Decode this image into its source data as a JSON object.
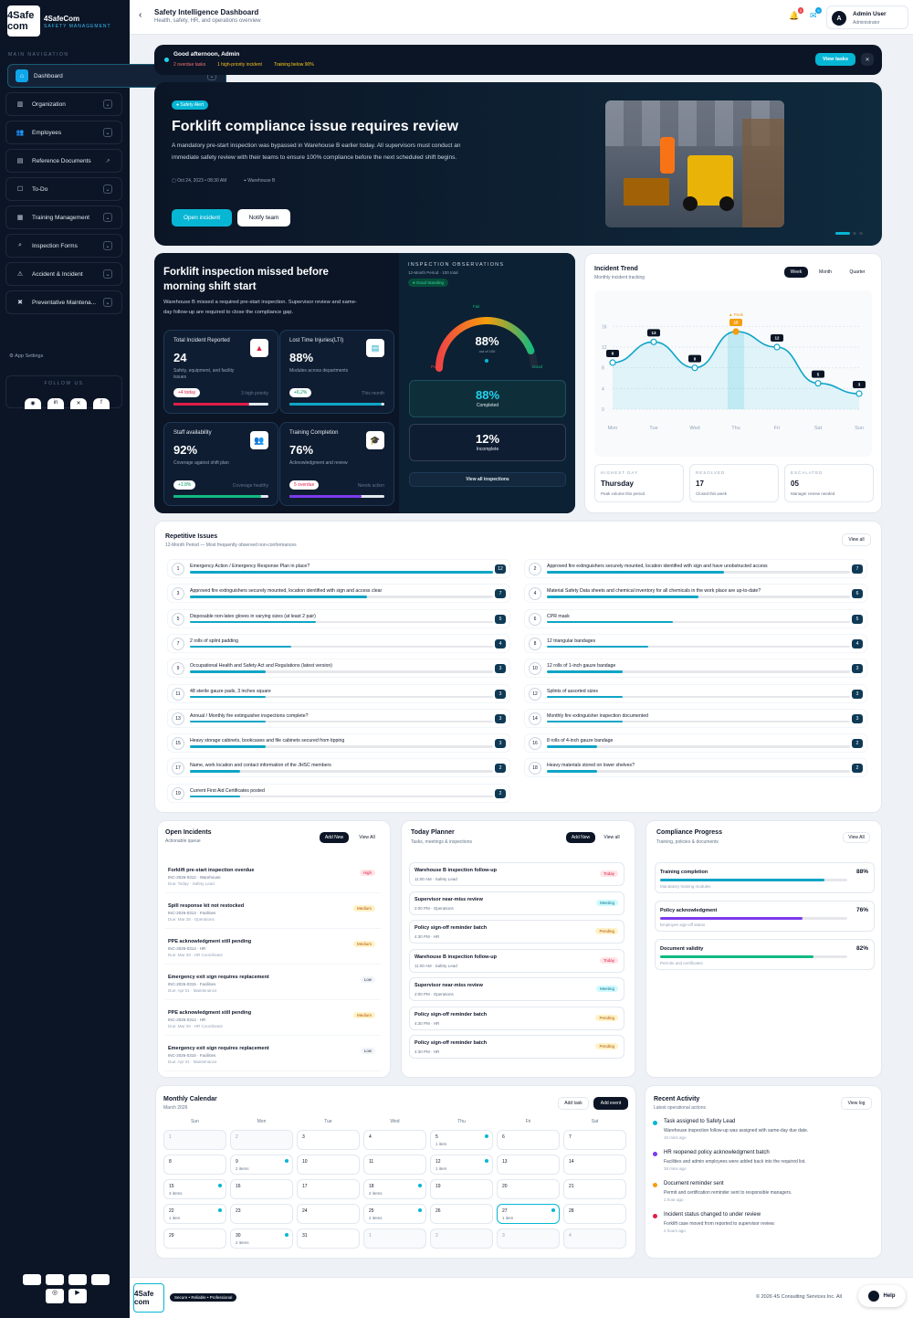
{
  "brand": {
    "logo": "4Safe com",
    "name": "4SafeCom",
    "tag": "SAFETY MANAGEMENT"
  },
  "sidebar": {
    "heading": "MAIN NAVIGATION",
    "items": [
      {
        "label": "Dashboard",
        "icon": "home-icon"
      },
      {
        "label": "Organization",
        "icon": "org-chart-icon"
      },
      {
        "label": "Employees",
        "icon": "people-icon"
      },
      {
        "label": "Reference Documents",
        "icon": "document-icon"
      },
      {
        "label": "To-Do",
        "icon": "todo-icon"
      },
      {
        "label": "Training Management",
        "icon": "training-icon"
      },
      {
        "label": "Inspection Forms",
        "icon": "search-icon"
      },
      {
        "label": "Accident & Incident",
        "icon": "incident-icon"
      },
      {
        "label": "Preventative Maintena...",
        "icon": "tools-icon"
      }
    ],
    "app_settings": "App Settings",
    "follow_us": "FOLLOW US"
  },
  "header": {
    "title": "Safety Intelligence Dashboard",
    "subtitle": "Health, safety, HR, and operations overview",
    "user_name": "Admin User",
    "user_role": "Administrator",
    "avatar": "A"
  },
  "greeting": {
    "title": "Good afternoon, Admin",
    "tag1": "2 overdue tasks",
    "tag2": "1 high-priority incident",
    "tag3": "Training below 90%",
    "button": "View tasks"
  },
  "hero": {
    "pill": "Safety Alert",
    "title": "Forklift compliance issue requires review",
    "body1": "A mandatory pre-start inspection was bypassed in Warehouse B earlier today. All supervisors must conduct an",
    "body2": "immediate safety review with their teams to ensure 100% compliance before the next scheduled shift begins.",
    "date": "Oct 24, 2023 • 08:30 AM",
    "location": "Warehouse B",
    "btn1": "Open incident",
    "btn2": "Notify team"
  },
  "summary": {
    "title1": "Forklift inspection missed before",
    "title2": "morning shift start",
    "body1": "Warehouse B missed a required pre-start inspection. Supervisor review and same-",
    "body2": "day follow-up are required to close the compliance gap."
  },
  "kpis": [
    {
      "label": "Total Incident Reported",
      "value": "24",
      "desc": "Safety, equipment, and facility issues",
      "change": "+4 today",
      "right": "3 high priority",
      "fill": 0.8,
      "color": "#e11d48",
      "icon": "warning-icon"
    },
    {
      "label": "Lost Time Injuries(LTI)",
      "value": "88%",
      "desc": "Modules across departments",
      "change": "+6.2%",
      "right": "This month",
      "fill": 0.97,
      "color": "#0ea5c6",
      "icon": "document-icon"
    },
    {
      "label": "Staff availability",
      "value": "92%",
      "desc": "Coverage against shift plan",
      "change": "+1.8%",
      "right": "Coverage healthy",
      "fill": 0.92,
      "color": "#10b981",
      "icon": "people-icon"
    },
    {
      "label": "Training Completion",
      "value": "76%",
      "desc": "Acknowledgment and review",
      "change": "5 overdue",
      "right": "Needs action",
      "fill": 0.76,
      "color": "#7c3aed",
      "icon": "graduation-icon"
    }
  ],
  "inspection": {
    "heading": "INSPECTION OBSERVATIONS",
    "period": "12-Month Period · 100 total",
    "status": "Good Standing",
    "gauge_value": "88%",
    "gauge_sub": "out of 100",
    "fair": "Fair",
    "poor": "Poor",
    "good": "Good",
    "completed_value": "88%",
    "completed_label": "Completed",
    "incomplete_value": "12%",
    "incomplete_label": "Incomplete",
    "button": "View all inspections",
    "gauge_fill": 0.88
  },
  "trend": {
    "title": "Incident Trend",
    "sub": "Monthly incident tracking",
    "tabs": [
      "Week",
      "Month",
      "Quarter"
    ],
    "peak": "Peak",
    "stats": [
      {
        "label": "HIGHEST DAY",
        "value": "Thursday",
        "sub": "Peak volume this period"
      },
      {
        "label": "RESOLVED",
        "value": "17",
        "sub": "Closed this week"
      },
      {
        "label": "ESCALATED",
        "value": "05",
        "sub": "Manager review needed"
      }
    ]
  },
  "chart_data": {
    "type": "line",
    "categories": [
      "Mon",
      "Tue",
      "Wed",
      "Thu",
      "Fri",
      "Sat",
      "Sun"
    ],
    "values": [
      9,
      13,
      8,
      15,
      12,
      5,
      3
    ],
    "yticks": [
      0,
      4,
      8,
      12,
      16
    ],
    "ylim": [
      0,
      18
    ]
  },
  "repetitive": {
    "title": "Repetitive Issues",
    "sub": "12-Month Period — Most frequently observed non-conformances",
    "button": "View all",
    "items": [
      {
        "n": "1",
        "q": "Emergency Action / Emergency Response Plan in place?",
        "c": 12
      },
      {
        "n": "2",
        "q": "Approved fire extinguishers securely mounted, location identified with sign and have unobstructed access",
        "c": 7
      },
      {
        "n": "3",
        "q": "Approved fire extinguishers securely mounted, location identified with sign and access clear",
        "c": 7
      },
      {
        "n": "4",
        "q": "Material Safety Data sheets and chemical inventory for all chemicals in the work place are up-to-date?",
        "c": 6
      },
      {
        "n": "5",
        "q": "Disposable non-latex gloves in varying sizes (at least 2 pair)",
        "c": 5
      },
      {
        "n": "6",
        "q": "CPR mask",
        "c": 5
      },
      {
        "n": "7",
        "q": "2 rolls of splint padding",
        "c": 4
      },
      {
        "n": "8",
        "q": "12 triangular bandages",
        "c": 4
      },
      {
        "n": "9",
        "q": "Occupational Health and Safety Act and Regulations (latest version)",
        "c": 3
      },
      {
        "n": "10",
        "q": "12 rolls of 1-inch gauze bandage",
        "c": 3
      },
      {
        "n": "11",
        "q": "48 sterile gauze pads, 3 inches square",
        "c": 3
      },
      {
        "n": "12",
        "q": "Splints of assorted sizes",
        "c": 3
      },
      {
        "n": "13",
        "q": "Annual / Monthly fire extinguisher inspections complete?",
        "c": 3
      },
      {
        "n": "14",
        "q": "Monthly fire extinguisher inspection documented",
        "c": 3
      },
      {
        "n": "15",
        "q": "Heavy storage cabinets, bookcases and file cabinets secured from tipping",
        "c": 3
      },
      {
        "n": "16",
        "q": "8 rolls of 4-inch gauze bandage",
        "c": 2
      },
      {
        "n": "17",
        "q": "Name, work location and contact information of the JHSC members",
        "c": 2
      },
      {
        "n": "18",
        "q": "Heavy materials stored on lower shelves?",
        "c": 2
      },
      {
        "n": "19",
        "q": "Current First Aid Certificates posted",
        "c": 2
      }
    ]
  },
  "open_incidents": {
    "title": "Open Incidents",
    "sub": "Actionable queue",
    "add": "Add New",
    "view": "View All",
    "items": [
      {
        "t": "Forklift pre-start inspection overdue",
        "id": "INC-2026-0312 · Warehouse",
        "due": "Due: Today · Safety Lead",
        "p": "High"
      },
      {
        "t": "Spill response kit not restocked",
        "id": "INC-2026-0313 · Facilities",
        "due": "Due: Mar 28 · Operations",
        "p": "Medium"
      },
      {
        "t": "PPE acknowledgment still pending",
        "id": "INC-2026-0314 · HR",
        "due": "Due: Mar 29 · HR Coordinator",
        "p": "Medium"
      },
      {
        "t": "Emergency exit sign requires replacement",
        "id": "INC-2026-0315 · Facilities",
        "due": "Due: Apr 01 · Maintenance",
        "p": "Low"
      },
      {
        "t": "PPE acknowledgment still pending",
        "id": "INC-2026-0314 · HR",
        "due": "Due: Mar 29 · HR Coordinator",
        "p": "Medium"
      },
      {
        "t": "Emergency exit sign requires replacement",
        "id": "INC-2026-0315 · Facilities",
        "due": "Due: Apr 01 · Maintenance",
        "p": "Low"
      }
    ]
  },
  "planner": {
    "title": "Today Planner",
    "sub": "Tasks, meetings & inspections",
    "add": "Add New",
    "view": "View all",
    "items": [
      {
        "t": "Warehouse B inspection follow-up",
        "s": "11:00 AM · Safety Lead",
        "b": "Today"
      },
      {
        "t": "Supervisor near-miss review",
        "s": "2:00 PM · Operations",
        "b": "Meeting"
      },
      {
        "t": "Policy sign-off reminder batch",
        "s": "4:30 PM · HR",
        "b": "Pending"
      },
      {
        "t": "Warehouse B inspection follow-up",
        "s": "11:00 AM · Safety Lead",
        "b": "Today"
      },
      {
        "t": "Supervisor near-miss review",
        "s": "2:00 PM · Operations",
        "b": "Meeting"
      },
      {
        "t": "Policy sign-off reminder batch",
        "s": "4:30 PM · HR",
        "b": "Pending"
      },
      {
        "t": "Policy sign-off reminder batch",
        "s": "4:30 PM · HR",
        "b": "Pending"
      }
    ]
  },
  "compliance": {
    "title": "Compliance Progress",
    "sub": "Training, policies & documents",
    "view": "View All",
    "items": [
      {
        "t": "Training completion",
        "s": "Mandatory training modules",
        "v": "88%",
        "f": 0.88,
        "color": "#0ea5c6"
      },
      {
        "t": "Policy acknowledgment",
        "s": "Employee sign-off status",
        "v": "76%",
        "f": 0.76,
        "color": "#7c3aed"
      },
      {
        "t": "Document validity",
        "s": "Permits and certificates",
        "v": "82%",
        "f": 0.82,
        "color": "#10b981"
      }
    ]
  },
  "calendar": {
    "title": "Monthly Calendar",
    "sub": "March 2026",
    "add_task": "Add task",
    "add_event": "Add event",
    "days": [
      "Sun",
      "Mon",
      "Tue",
      "Wed",
      "Thu",
      "Fri",
      "Sat"
    ],
    "cells": [
      {
        "d": "1",
        "o": true
      },
      {
        "d": "2",
        "o": true
      },
      {
        "d": "3"
      },
      {
        "d": "4"
      },
      {
        "d": "5",
        "i": "1 item",
        "dot": true
      },
      {
        "d": "6"
      },
      {
        "d": "7"
      },
      {
        "d": "8"
      },
      {
        "d": "9",
        "i": "2 items",
        "dot": true
      },
      {
        "d": "10"
      },
      {
        "d": "11"
      },
      {
        "d": "12",
        "i": "1 item",
        "dot": true
      },
      {
        "d": "13"
      },
      {
        "d": "14"
      },
      {
        "d": "15",
        "i": "3 items",
        "dot": true
      },
      {
        "d": "16"
      },
      {
        "d": "17"
      },
      {
        "d": "18",
        "i": "2 items",
        "dot": true
      },
      {
        "d": "19"
      },
      {
        "d": "20"
      },
      {
        "d": "21"
      },
      {
        "d": "22",
        "i": "1 item",
        "dot": true
      },
      {
        "d": "23"
      },
      {
        "d": "24"
      },
      {
        "d": "25",
        "i": "2 items",
        "dot": true
      },
      {
        "d": "26"
      },
      {
        "d": "27",
        "i": "1 item",
        "dot": true,
        "sel": true
      },
      {
        "d": "28"
      },
      {
        "d": "29"
      },
      {
        "d": "30",
        "i": "2 items",
        "dot": true
      },
      {
        "d": "31"
      },
      {
        "d": "1",
        "o": true
      },
      {
        "d": "2",
        "o": true
      },
      {
        "d": "3",
        "o": true
      },
      {
        "d": "4",
        "o": true
      }
    ]
  },
  "activity": {
    "title": "Recent Activity",
    "sub": "Latest operational actions",
    "view": "View log",
    "items": [
      {
        "a": "Task assigned to Safety Lead",
        "b": "Warehouse inspection follow-up was assigned with same-day due date.",
        "c": "10 mins ago",
        "color": "#06b6d4"
      },
      {
        "a": "HR reopened policy acknowledgment batch",
        "b": "Facilities and admin employees were added back into the required list.",
        "c": "28 mins ago",
        "color": "#7c3aed"
      },
      {
        "a": "Document reminder sent",
        "b": "Permit and certification reminder sent to responsible managers.",
        "c": "1 hour ago",
        "color": "#f59e0b"
      },
      {
        "a": "Incident status changed to under review",
        "b": "Forklift case moved from reported to supervisor review.",
        "c": "2 hours ago",
        "color": "#e11d48"
      }
    ]
  },
  "footer": {
    "badge": "Secure • Reliable • Professional",
    "copyright": "© 2026 4S Consulting Services Inc. All",
    "help": "Help"
  }
}
